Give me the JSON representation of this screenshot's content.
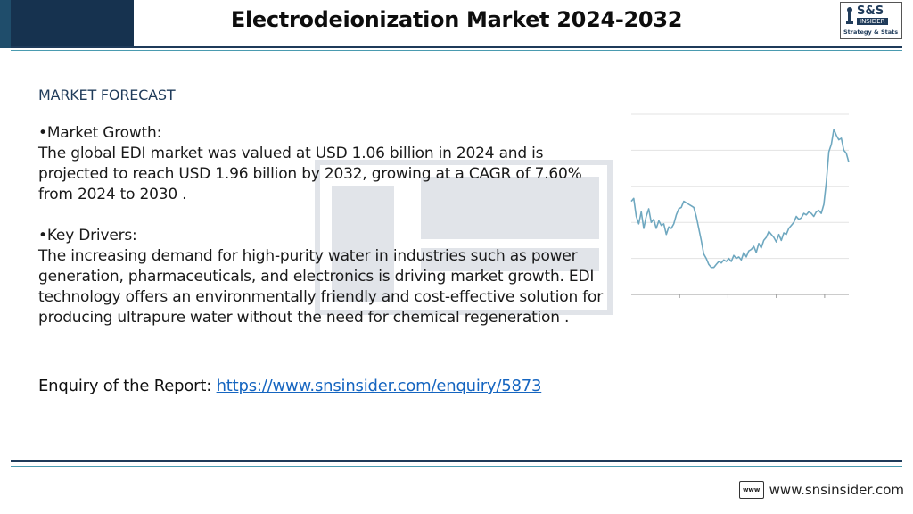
{
  "header": {
    "title": "Electrodeionization Market 2024-2032",
    "logo": {
      "text_top": "S&S",
      "text_mid": "INSIDER",
      "text_bottom": "Strategy & Stats"
    }
  },
  "section": {
    "heading": "MARKET FORECAST"
  },
  "content": {
    "growth_heading": "•Market Growth:",
    "growth_text": "The global EDI market was valued at USD 1.06 billion in 2024 and is projected to reach USD 1.96 billion by 2032, growing at a CAGR of 7.60% from 2024 to 2030 .",
    "drivers_heading": "•Key Drivers:",
    "drivers_text": "The increasing demand for high-purity water in industries such as power generation, pharmaceuticals, and electronics is driving market growth. EDI technology offers an environmentally friendly and cost-effective solution for producing ultrapure water without the need for chemical regeneration ."
  },
  "enquiry": {
    "label": "Enquiry of the Report: ",
    "link": "https://www.snsinsider.com/enquiry/5873"
  },
  "footer": {
    "www_icon": "www",
    "site": "www.snsinsider.com"
  },
  "chart_data": {
    "type": "line",
    "title": "",
    "xlabel": "",
    "ylabel": "",
    "grid": true,
    "values": [
      62,
      64,
      52,
      47,
      55,
      44,
      52,
      57,
      48,
      50,
      44,
      49,
      46,
      47,
      40,
      45,
      44,
      47,
      53,
      57,
      58,
      62,
      61,
      60,
      59,
      58,
      52,
      44,
      36,
      27,
      24,
      20,
      18,
      18,
      20,
      22,
      21,
      23,
      22,
      24,
      22,
      26,
      24,
      25,
      23,
      28,
      25,
      29,
      30,
      32,
      28,
      34,
      31,
      36,
      38,
      42,
      40,
      38,
      35,
      40,
      36,
      41,
      40,
      44,
      46,
      48,
      52,
      50,
      51,
      54,
      53,
      55,
      54,
      52,
      55,
      56,
      54,
      60,
      75,
      95,
      100,
      110,
      106,
      103,
      104,
      96,
      94,
      88
    ]
  }
}
